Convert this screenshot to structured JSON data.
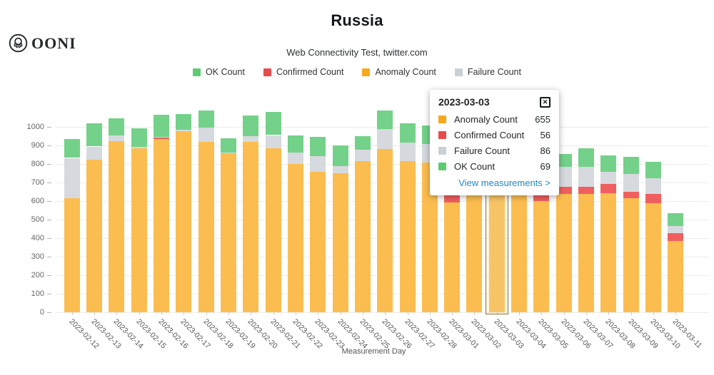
{
  "branding": {
    "logo_text": "OONI"
  },
  "header": {
    "title": "Russia",
    "subtitle": "Web Connectivity Test, twitter.com"
  },
  "legend": {
    "items": [
      {
        "label": "OK Count",
        "color": "#5ecb73"
      },
      {
        "label": "Confirmed Count",
        "color": "#e94a4a"
      },
      {
        "label": "Anomaly Count",
        "color": "#f8a81c"
      },
      {
        "label": "Failure Count",
        "color": "#c9d0d6"
      }
    ]
  },
  "chart_data": {
    "type": "bar",
    "stacked": true,
    "title": "Russia",
    "xlabel": "Measurement Day",
    "ylabel": "",
    "ylim": [
      0,
      1100
    ],
    "yticks": [
      0,
      100,
      200,
      300,
      400,
      500,
      600,
      700,
      800,
      900,
      1000
    ],
    "grid": true,
    "legend_position": "top",
    "highlighted_category": "2023-03-03",
    "categories": [
      "2023-02-12",
      "2023-02-13",
      "2023-02-14",
      "2023-02-15",
      "2023-02-16",
      "2023-02-17",
      "2023-02-18",
      "2023-02-19",
      "2023-02-20",
      "2023-02-21",
      "2023-02-22",
      "2023-02-23",
      "2023-02-24",
      "2023-02-25",
      "2023-02-26",
      "2023-02-27",
      "2023-02-28",
      "2023-03-01",
      "2023-03-02",
      "2023-03-03",
      "2023-03-04",
      "2023-03-05",
      "2023-03-06",
      "2023-03-07",
      "2023-03-08",
      "2023-03-09",
      "2023-03-10",
      "2023-03-11"
    ],
    "series": [
      {
        "name": "Anomaly Count",
        "bar_color": "#fbbd50",
        "values": [
          615,
          823,
          922,
          882,
          933,
          974,
          919,
          855,
          917,
          885,
          800,
          755,
          748,
          814,
          881,
          814,
          808,
          593,
          670,
          655,
          665,
          599,
          638,
          638,
          642,
          616,
          586,
          384
        ]
      },
      {
        "name": "Confirmed Count",
        "bar_color": "#f05f5f",
        "values": [
          0,
          0,
          0,
          0,
          8,
          0,
          0,
          0,
          0,
          0,
          0,
          0,
          0,
          0,
          0,
          0,
          0,
          45,
          0,
          56,
          0,
          60,
          38,
          38,
          51,
          34,
          52,
          43
        ]
      },
      {
        "name": "Failure Count",
        "bar_color": "#d6dade",
        "values": [
          217,
          71,
          32,
          9,
          4,
          10,
          77,
          6,
          30,
          70,
          60,
          87,
          39,
          60,
          106,
          99,
          99,
          85,
          90,
          86,
          110,
          95,
          106,
          109,
          64,
          97,
          83,
          38
        ]
      },
      {
        "name": "OK Count",
        "bar_color": "#74d189",
        "values": [
          98,
          124,
          92,
          100,
          119,
          86,
          94,
          78,
          113,
          122,
          94,
          103,
          113,
          74,
          99,
          102,
          98,
          85,
          85,
          69,
          85,
          90,
          71,
          100,
          89,
          93,
          90,
          68
        ]
      }
    ]
  },
  "tooltip": {
    "date": "2023-03-03",
    "close_icon": "✕",
    "rows": [
      {
        "label": "Anomaly Count",
        "value": 655,
        "color": "#f8a81c"
      },
      {
        "label": "Confirmed Count",
        "value": 56,
        "color": "#e94a4a"
      },
      {
        "label": "Failure Count",
        "value": 86,
        "color": "#c9d0d6"
      },
      {
        "label": "OK Count",
        "value": 69,
        "color": "#5ecb73"
      }
    ],
    "link_label": "View measurements >"
  }
}
